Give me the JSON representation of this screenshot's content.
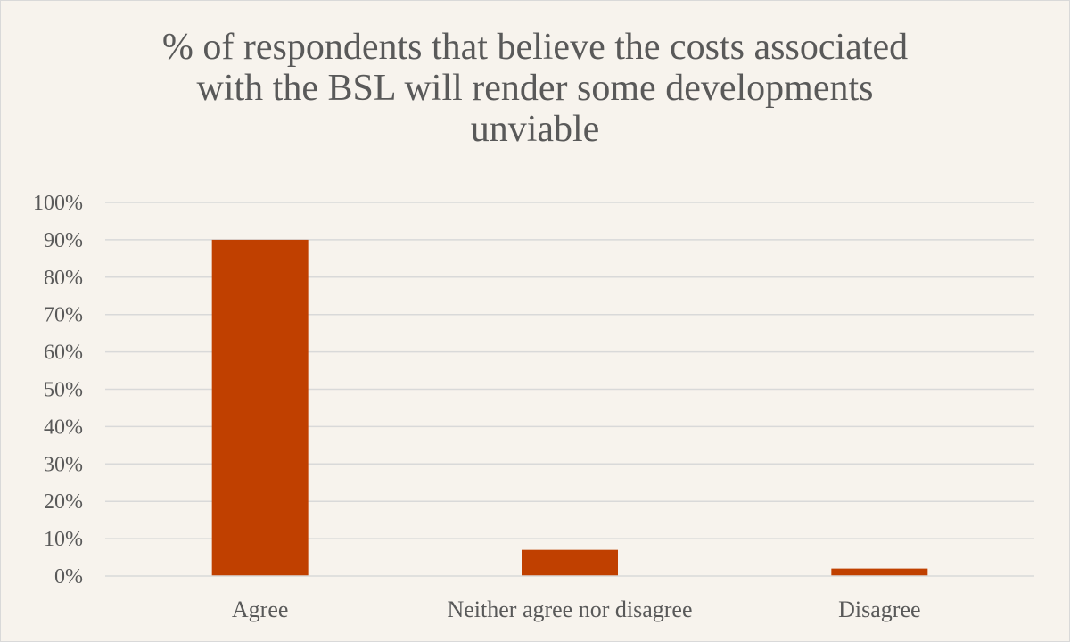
{
  "chart_data": {
    "type": "bar",
    "title": "% of respondents that believe the costs associated with the BSL will render some developments unviable",
    "title_lines": [
      "% of respondents that believe the costs associated",
      "with the BSL will render some developments",
      "unviable"
    ],
    "categories": [
      "Agree",
      "Neither agree nor disagree",
      "Disagree"
    ],
    "values": [
      0.9,
      0.07,
      0.02
    ],
    "ylim": [
      0,
      1
    ],
    "yticks": [
      0,
      0.1,
      0.2,
      0.3,
      0.4,
      0.5,
      0.6,
      0.7,
      0.8,
      0.9,
      1.0
    ],
    "ytick_labels": [
      "0%",
      "10%",
      "20%",
      "30%",
      "40%",
      "50%",
      "60%",
      "70%",
      "80%",
      "90%",
      "100%"
    ],
    "xlabel": "",
    "ylabel": "",
    "grid": true,
    "legend": "none",
    "bar_color": "#c04000",
    "gridline_color": "#d9d9d9",
    "text_color": "#595959",
    "background_color": "#f7f3ed"
  }
}
